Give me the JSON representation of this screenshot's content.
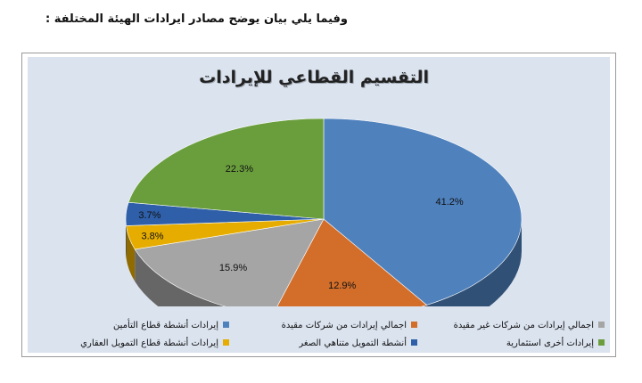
{
  "page": {
    "intro": "وفيما يلي بيان يوضح مصادر ايرادات الهيئة المختلفة :"
  },
  "chart_data": {
    "type": "pie",
    "title": "التقسيم القطاعي للإيرادات",
    "three_d": true,
    "legend_position": "bottom",
    "series": [
      {
        "name": "إيرادات أنشطة قطاع التأمين",
        "value": 41.2,
        "label": "41.2%",
        "color": "#4f81bd"
      },
      {
        "name": "اجمالي إيرادات من شركات مقيدة",
        "value": 12.9,
        "label": "12.9%",
        "color": "#d26e2a"
      },
      {
        "name": "اجمالي إيرادات من شركات غير مقيدة",
        "value": 15.9,
        "label": "15.9%",
        "color": "#a5a5a5"
      },
      {
        "name": "إيرادات أنشطة قطاع التمويل العقاري",
        "value": 3.8,
        "label": "3.8%",
        "color": "#e6ad00"
      },
      {
        "name": "أنشطة التمويل متناهي الصغر",
        "value": 3.7,
        "label": "3.7%",
        "color": "#2e5fa8"
      },
      {
        "name": "إيرادات أخرى استثمارية",
        "value": 22.3,
        "label": "22.3%",
        "color": "#6a9e3d"
      }
    ]
  }
}
